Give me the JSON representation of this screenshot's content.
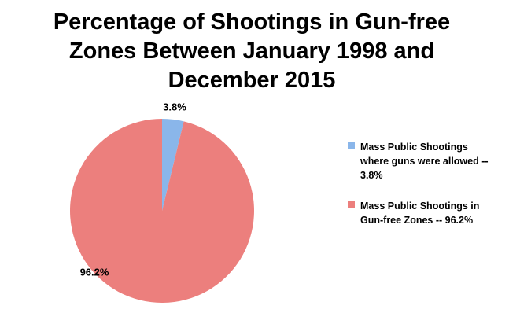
{
  "chart_data": {
    "type": "pie",
    "title": "Percentage of Shootings in Gun-free Zones Between January 1998 and December 2015",
    "categories": [
      "Mass Public Shootings where guns were allowed -- 3.8%",
      "Mass Public Shootings in Gun-free Zones -- 96.2%"
    ],
    "values": [
      3.8,
      96.2
    ],
    "value_labels": [
      "3.8%",
      "96.2%"
    ],
    "colors": [
      "#8ab6ea",
      "#ec7f7d"
    ],
    "legend": "right"
  }
}
